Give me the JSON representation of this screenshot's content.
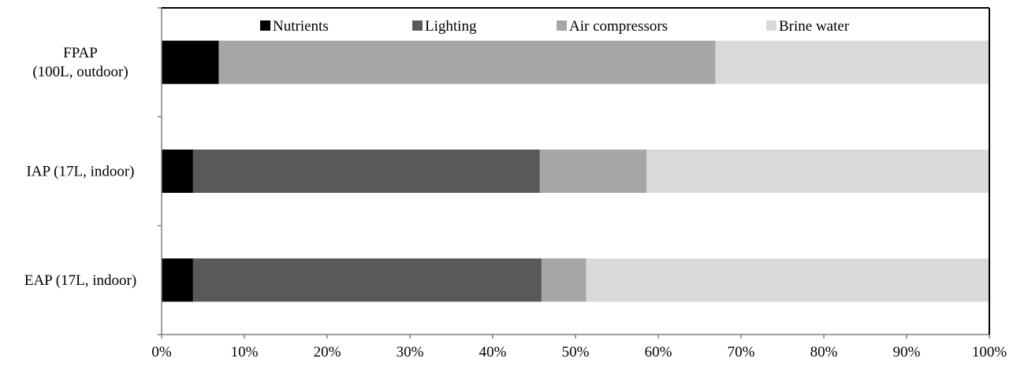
{
  "chart_data": {
    "type": "bar",
    "orientation": "horizontal",
    "stacked": "percent",
    "title": "",
    "xlabel": "",
    "ylabel": "",
    "xlim": [
      0,
      100
    ],
    "x_ticks": [
      "0%",
      "10%",
      "20%",
      "30%",
      "40%",
      "50%",
      "60%",
      "70%",
      "80%",
      "90%",
      "100%"
    ],
    "grid": false,
    "legend_position": "top",
    "categories": [
      {
        "lines": [
          "FPAP",
          "(100L, outdoor)"
        ]
      },
      {
        "lines": [
          "IAP (17L, indoor)"
        ]
      },
      {
        "lines": [
          "EAP (17L, indoor)"
        ]
      }
    ],
    "series": [
      {
        "name": "Nutrients",
        "color": "#000000",
        "values": [
          6.9,
          3.8,
          3.8
        ]
      },
      {
        "name": "Lighting",
        "color": "#595959",
        "values": [
          0,
          41.9,
          42.1
        ]
      },
      {
        "name": "Air compressors",
        "color": "#a6a6a6",
        "values": [
          60.0,
          12.9,
          5.4
        ]
      },
      {
        "name": "Brine water",
        "color": "#d9d9d9",
        "values": [
          33.1,
          41.4,
          48.7
        ]
      }
    ]
  }
}
